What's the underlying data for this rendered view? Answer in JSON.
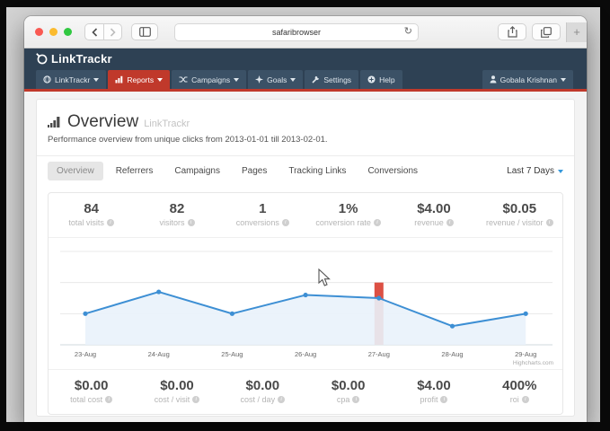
{
  "browser": {
    "address": "safaribrowser",
    "new_tab_label": "+"
  },
  "icons": {
    "info": "i",
    "refresh": "↻"
  },
  "site": {
    "logo_text": "LinkTrackr",
    "nav_items": [
      {
        "label": "LinkTrackr",
        "caret": true
      },
      {
        "label": "Reports",
        "caret": true,
        "active": true
      },
      {
        "label": "Campaigns",
        "caret": true
      },
      {
        "label": "Goals",
        "caret": true
      },
      {
        "label": "Settings",
        "caret": false
      },
      {
        "label": "Help",
        "caret": false
      }
    ],
    "user_menu": {
      "label": "Gobala Krishnan"
    }
  },
  "page": {
    "title": "Overview",
    "title_suffix": "LinkTrackr",
    "subtitle": "Performance overview from unique clicks from 2013-01-01 till 2013-02-01.",
    "tabs": [
      {
        "label": "Overview",
        "active": true
      },
      {
        "label": "Referrers",
        "active": false
      },
      {
        "label": "Campaigns",
        "active": false
      },
      {
        "label": "Pages",
        "active": false
      },
      {
        "label": "Tracking Links",
        "active": false
      },
      {
        "label": "Conversions",
        "active": false
      }
    ],
    "date_range": "Last 7 Days",
    "stats_top": [
      {
        "value": "84",
        "label": "total visits"
      },
      {
        "value": "82",
        "label": "visitors"
      },
      {
        "value": "1",
        "label": "conversions"
      },
      {
        "value": "1%",
        "label": "conversion rate"
      },
      {
        "value": "$4.00",
        "label": "revenue"
      },
      {
        "value": "$0.05",
        "label": "revenue / visitor"
      }
    ],
    "stats_bottom": [
      {
        "value": "$0.00",
        "label": "total cost"
      },
      {
        "value": "$0.00",
        "label": "cost / visit"
      },
      {
        "value": "$0.00",
        "label": "cost / day"
      },
      {
        "value": "$0.00",
        "label": "cpa"
      },
      {
        "value": "$4.00",
        "label": "profit"
      },
      {
        "value": "400%",
        "label": "roi"
      }
    ]
  },
  "chart_data": {
    "type": "area",
    "title": "",
    "x": [
      "23-Aug",
      "24-Aug",
      "25-Aug",
      "26-Aug",
      "27-Aug",
      "28-Aug",
      "29-Aug"
    ],
    "series": [
      {
        "name": "visits",
        "type": "area",
        "color": "#3d8fd4",
        "fill_color": "#e9f2fb",
        "values": [
          10,
          17,
          10,
          16,
          15,
          6,
          10
        ]
      },
      {
        "name": "highlight",
        "type": "column",
        "color": "#dc5044",
        "values": [
          null,
          null,
          null,
          null,
          20,
          null,
          null
        ]
      }
    ],
    "ylim": [
      0,
      30
    ],
    "gridline_step": 10,
    "grid": true,
    "legend": false,
    "credit": "Highcharts.com"
  },
  "colors": {
    "accent_red": "#c0392b",
    "header_bg": "#2e4154",
    "nav_item_bg": "#3b5166",
    "line_blue": "#3d8fd4"
  }
}
